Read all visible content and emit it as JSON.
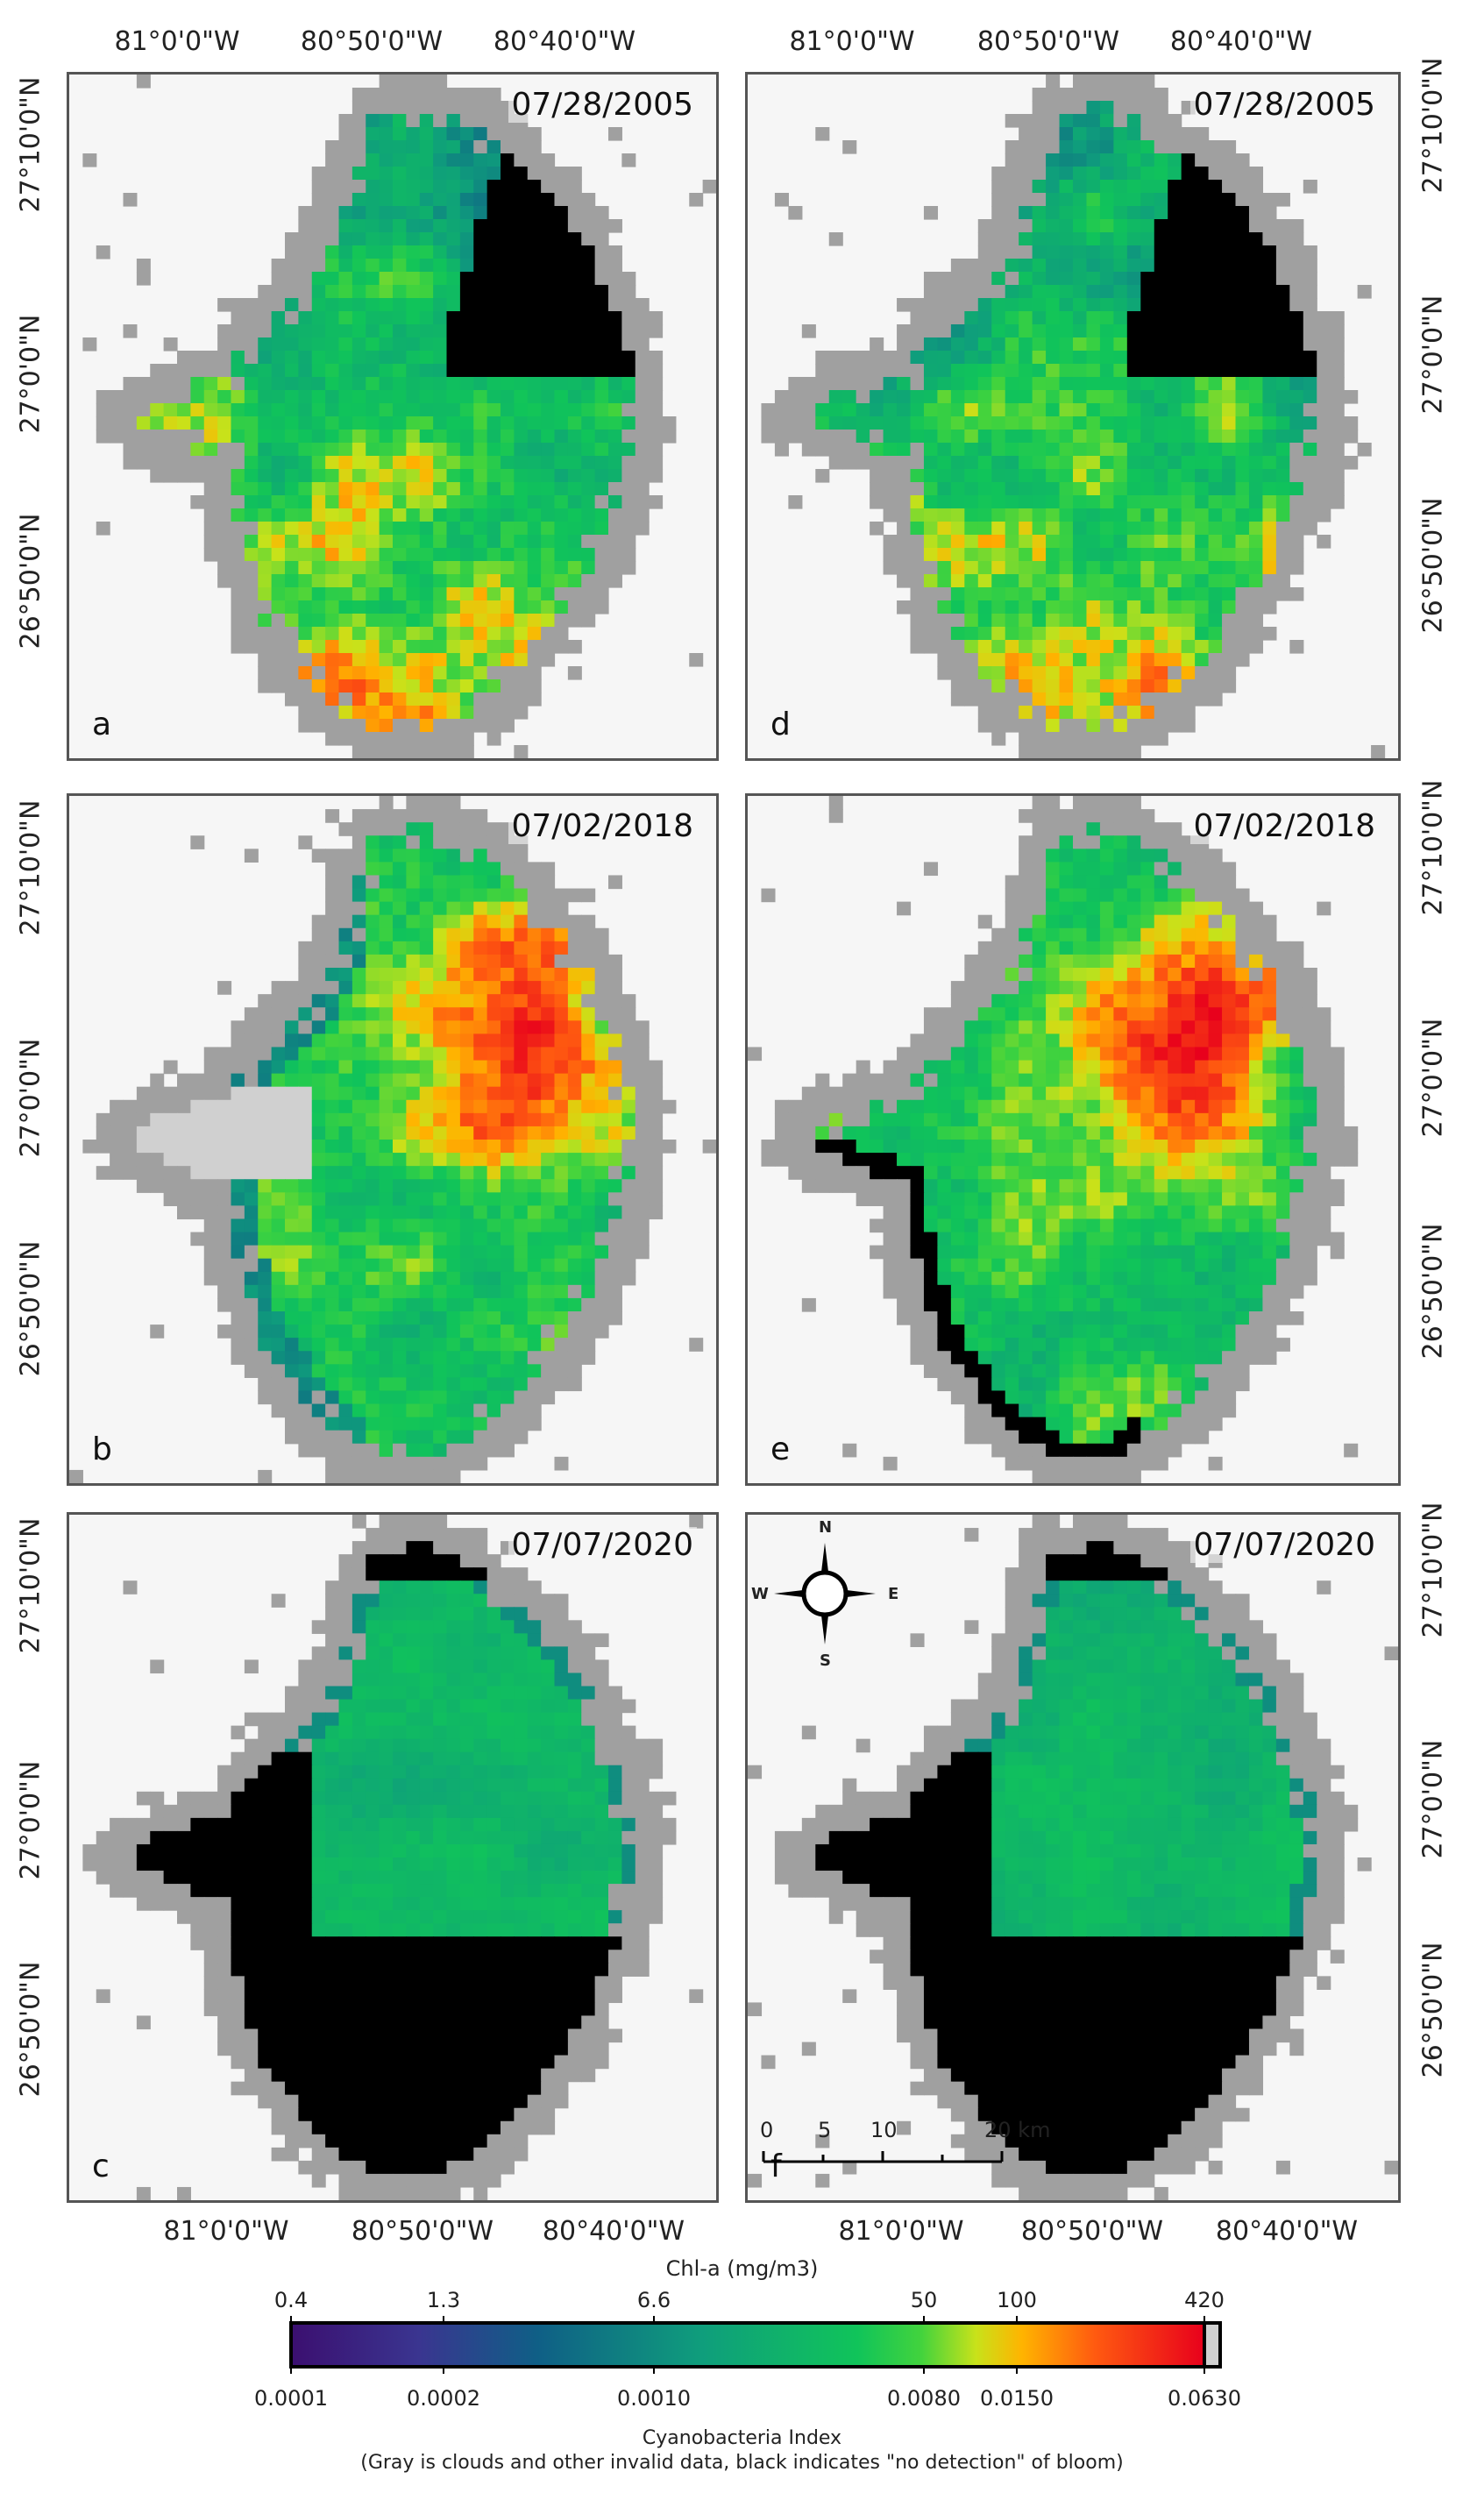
{
  "panels": [
    {
      "id": "a",
      "date": "07/28/2005",
      "label": "a",
      "variant": 1,
      "black": "ne"
    },
    {
      "id": "d",
      "date": "07/28/2005",
      "label": "d",
      "variant": 2,
      "black": "ne"
    },
    {
      "id": "b",
      "date": "07/02/2018",
      "label": "b",
      "variant": 3,
      "black": "none"
    },
    {
      "id": "e",
      "date": "07/02/2018",
      "label": "e",
      "variant": 4,
      "black": "rim"
    },
    {
      "id": "c",
      "date": "07/07/2020",
      "label": "c",
      "variant": 5,
      "black": "south"
    },
    {
      "id": "f",
      "date": "07/07/2020",
      "label": "f",
      "variant": 6,
      "black": "south"
    }
  ],
  "lon_labels": [
    "81°0'0\"W",
    "80°50'0\"W",
    "80°40'0\"W"
  ],
  "lat_labels": [
    "27°10'0\"N",
    "27°0'0\"N",
    "26°50'0\"N"
  ],
  "compass": {
    "n": "N",
    "s": "S",
    "e": "E",
    "w": "W"
  },
  "scalebar": {
    "labels": [
      "0",
      "5",
      "10",
      "20 km"
    ]
  },
  "colorbar": {
    "title": "Chl-a (mg/m3)",
    "top_ticks": [
      "0.4",
      "1.3",
      "6.6",
      "50",
      "100",
      "420"
    ],
    "bottom_ticks": [
      "0.0001",
      "0.0002",
      "0.0010",
      "0.0080",
      "0.0150",
      "0.0630"
    ],
    "index_title": "Cyanobacteria Index",
    "note": "(Gray is clouds and other invalid data, black indicates \"no detection\" of bloom)"
  },
  "colors": {
    "nodata": "#f6f6f6",
    "cloud": "#a0a0a0",
    "black": "#000000",
    "low": "#3b0f70",
    "high": "#e8001c"
  }
}
